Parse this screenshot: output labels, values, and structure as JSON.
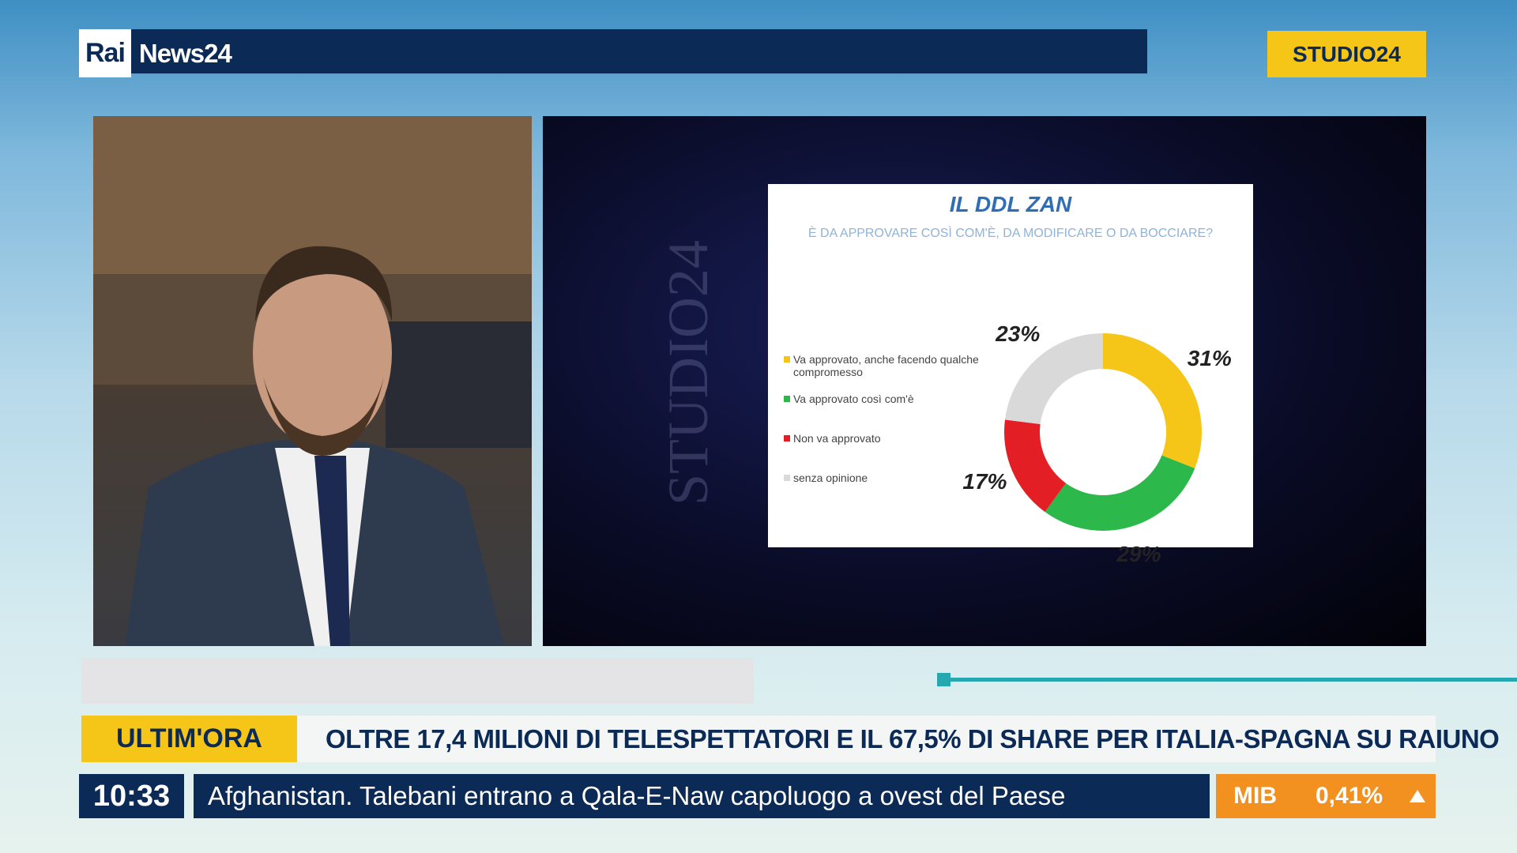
{
  "header": {
    "logo_rai": "Rai",
    "logo_news": "News24",
    "program": "STUDIO24"
  },
  "watermark": "STUDIO24",
  "chart_data": {
    "type": "pie",
    "donut": true,
    "title": "IL DDL ZAN",
    "subtitle": "È DA APPROVARE COSÌ COM'È, DA MODIFICARE O DA BOCCIARE?",
    "categories": [
      "Va approvato, anche facendo qualche compromesso",
      "Va approvato così com'è",
      "Non va approvato",
      "senza opinione"
    ],
    "values": [
      31,
      29,
      17,
      23
    ],
    "value_labels": [
      "31%",
      "29%",
      "17%",
      "23%"
    ],
    "colors": [
      "#f5c518",
      "#2db84b",
      "#e31e24",
      "#d9d9d9"
    ]
  },
  "ticker": {
    "label": "ULTIM'ORA",
    "headline": "OLTRE 17,4 MILIONI DI TELESPETTATORI E IL 67,5% DI SHARE PER ITALIA-SPAGNA SU RAIUNO",
    "time": "10:33",
    "news": "Afghanistan. Talebani entrano a Qala-E-Naw capoluogo a ovest del Paese",
    "index_name": "MIB",
    "index_value": "0,41%"
  }
}
